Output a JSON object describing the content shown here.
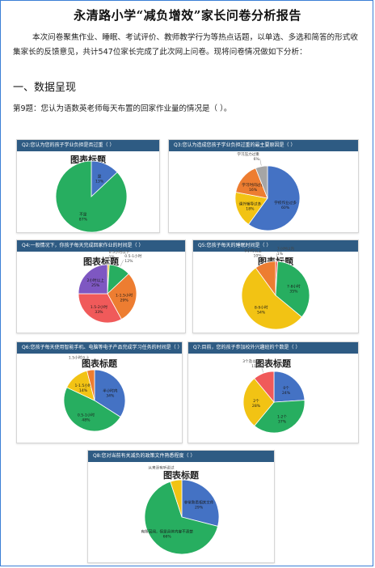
{
  "title": "永清路小学“减负增效”家长问卷分析报告",
  "intro": "本次问卷聚焦作业、睡眠、考试评价、教师教学行为等热点话题，以单选、多选和简答的形式收集家长的反馈意见，共计547位家长完成了此次网上问卷。现将问卷情况做如下分析：",
  "section_heading": "一、数据呈现",
  "question_line": "第9题：您认为语数英老师每天布置的回家作业量的情况是（    ）。",
  "chart_data": [
    {
      "id": "q2",
      "type": "pie",
      "header": "Q2:您认为您的孩子学业负担是否过重（  ）",
      "title": "图表标题",
      "slices": [
        {
          "label": "是",
          "value": 13,
          "color": "#4472c4"
        },
        {
          "label": "不是",
          "value": 87,
          "color": "#27ae60"
        }
      ]
    },
    {
      "id": "q3",
      "type": "pie",
      "header": "Q3:您认为造成您孩子学业负担过重的最主要原因是（  ）",
      "title": "",
      "slices": [
        {
          "label": "学校作业过多",
          "value": 60,
          "color": "#4472c4"
        },
        {
          "label": "课外辅导过多",
          "value": 18,
          "color": "#f2c314"
        },
        {
          "label": "学习时间过长",
          "value": 16,
          "color": "#ed7d31"
        },
        {
          "label": "学习压力过重",
          "value": 6,
          "color": "#a5a5a5"
        }
      ]
    },
    {
      "id": "q4",
      "type": "pie",
      "header": "Q4:一般情况下，你孩子每天完成回家作业的时间是（  ）",
      "title": "图表标题",
      "slices": [
        {
          "label": "0.5小时以下",
          "value": 1,
          "color": "#f2c314"
        },
        {
          "label": "0.5-1小时",
          "value": 12,
          "color": "#27ae60"
        },
        {
          "label": "1-1.5小时",
          "value": 29,
          "color": "#ed7d31"
        },
        {
          "label": "1.5-2小时",
          "value": 33,
          "color": "#f05a5a"
        },
        {
          "label": "2小时以上",
          "value": 25,
          "color": "#7e57c2"
        }
      ]
    },
    {
      "id": "q5",
      "type": "pie",
      "header": "Q5:您孩子每天的睡眠时间是（  ）",
      "title": "图表标题",
      "slices": [
        {
          "label": "7小时以内",
          "value": 1,
          "color": "#f05a5a"
        },
        {
          "label": "7-8小时",
          "value": 35,
          "color": "#27ae60"
        },
        {
          "label": "8-9小时",
          "value": 54,
          "color": "#f2c314"
        },
        {
          "label": "9小时以上",
          "value": 10,
          "color": "#ed7d31"
        }
      ]
    },
    {
      "id": "q6",
      "type": "pie",
      "header": "Q6:您孩子每天使用智能手机、电脑等电子产品完成学习任务的时间是（  ）",
      "title": "图表标题",
      "slices": [
        {
          "label": "半小时内",
          "value": 34,
          "color": "#4472c4"
        },
        {
          "label": "0.5-1小时",
          "value": 48,
          "color": "#27ae60"
        },
        {
          "label": "1-1.5小时",
          "value": 14,
          "color": "#f2c314"
        },
        {
          "label": "1.5小时以上",
          "value": 4,
          "color": "#ed7d31"
        }
      ]
    },
    {
      "id": "q7",
      "type": "pie",
      "header": "Q7:目前，您的孩子参加校外兴趣班的个数是（  ）",
      "title": "图表标题",
      "slices": [
        {
          "label": "0个",
          "value": 24,
          "color": "#4472c4"
        },
        {
          "label": "1-2个",
          "value": 37,
          "color": "#27ae60"
        },
        {
          "label": "2个",
          "value": 28,
          "color": "#f2c314"
        },
        {
          "label": "3个及以上",
          "value": 11,
          "color": "#f05a5a"
        }
      ]
    },
    {
      "id": "q8",
      "type": "pie",
      "header": "Q8:您对当前有关减负的政策文件熟悉程度（  ）",
      "title": "图表标题",
      "slices": [
        {
          "label": "非常熟悉相关文件",
          "value": 29,
          "color": "#4472c4"
        },
        {
          "label": "有所耳闻，但是具体内容不清楚",
          "value": 66,
          "color": "#27ae60"
        },
        {
          "label": "从来没有听说过",
          "value": 5,
          "color": "#f2c314"
        }
      ]
    }
  ]
}
